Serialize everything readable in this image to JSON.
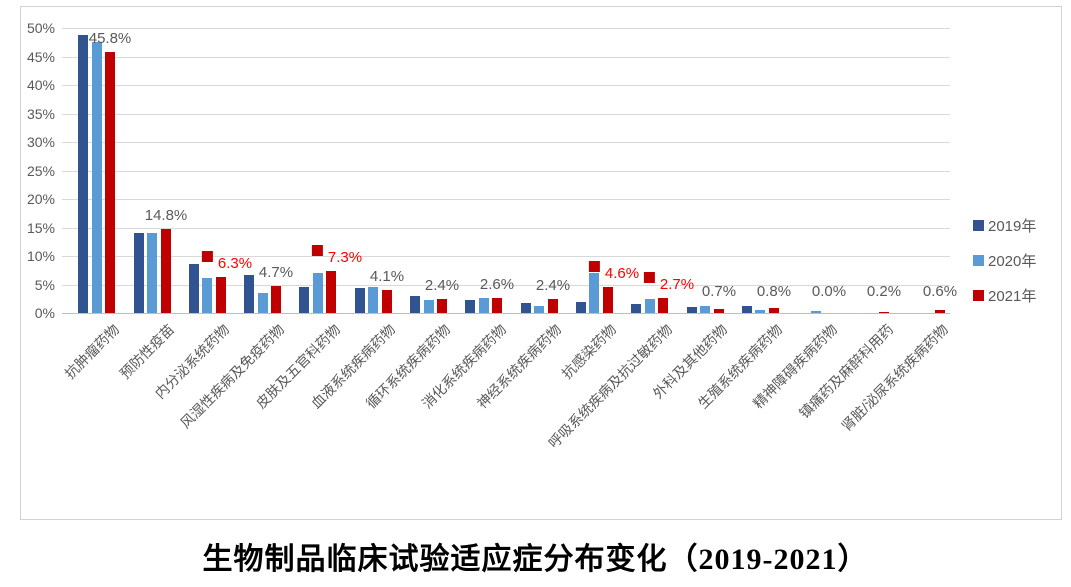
{
  "title": "生物制品临床试验适应症分布变化（2019-2021）",
  "colors": {
    "series_2019": "#31538F",
    "series_2020": "#5B9BD5",
    "series_2021": "#C00000",
    "highlight_label": "#FF0000",
    "gray_label": "#595959",
    "gridline": "#D9D9D9"
  },
  "chart_data": {
    "type": "bar",
    "title": "生物制品临床试验适应症分布变化（2019-2021）",
    "xlabel": "",
    "ylabel": "",
    "ylim": [
      0,
      50
    ],
    "ytick_step": 5,
    "ytick_labels": [
      "0%",
      "5%",
      "10%",
      "15%",
      "20%",
      "25%",
      "30%",
      "35%",
      "40%",
      "45%",
      "50%"
    ],
    "grid": true,
    "legend_position": "right",
    "categories": [
      "抗肿瘤药物",
      "预防性疫苗",
      "内分泌系统药物",
      "风湿性疾病及免疫药物",
      "皮肤及五官科药物",
      "血液系统疾病药物",
      "循环系统疾病药物",
      "消化系统疾病药物",
      "神经系统疾病药物",
      "抗感染药物",
      "呼吸系统疾病及抗过敏药物",
      "外科及其他药物",
      "生殖系统疾病药物",
      "精神障碍疾病药物",
      "镇痛药及麻醉科用药",
      "肾脏/泌尿系统疾病药物"
    ],
    "series": [
      {
        "name": "2019年",
        "color": "#31538F",
        "values": [
          48.8,
          14.0,
          8.6,
          6.7,
          4.5,
          4.3,
          3.0,
          2.2,
          1.8,
          1.9,
          1.5,
          1.0,
          1.2,
          0.0,
          0.0,
          0.0
        ]
      },
      {
        "name": "2020年",
        "color": "#5B9BD5",
        "values": [
          47.5,
          14.0,
          6.1,
          3.5,
          7.0,
          4.6,
          2.3,
          2.6,
          1.3,
          7.1,
          2.5,
          1.2,
          0.6,
          0.4,
          0.0,
          0.0
        ]
      },
      {
        "name": "2021年",
        "color": "#C00000",
        "values": [
          45.8,
          14.8,
          6.3,
          4.7,
          7.3,
          4.1,
          2.4,
          2.6,
          2.4,
          4.6,
          2.7,
          0.7,
          0.8,
          0.0,
          0.2,
          0.6
        ]
      }
    ],
    "data_labels_2021": [
      {
        "text": "45.8%",
        "highlight": false
      },
      {
        "text": "14.8%",
        "highlight": false
      },
      {
        "text": "6.3%",
        "highlight": true
      },
      {
        "text": "4.7%",
        "highlight": false
      },
      {
        "text": "7.3%",
        "highlight": true
      },
      {
        "text": "4.1%",
        "highlight": false
      },
      {
        "text": "2.4%",
        "highlight": false
      },
      {
        "text": "2.6%",
        "highlight": false
      },
      {
        "text": "2.4%",
        "highlight": false
      },
      {
        "text": "4.6%",
        "highlight": true
      },
      {
        "text": "2.7%",
        "highlight": true
      },
      {
        "text": "0.7%",
        "highlight": false
      },
      {
        "text": "0.8%",
        "highlight": false
      },
      {
        "text": "0.0%",
        "highlight": false
      },
      {
        "text": "0.2%",
        "highlight": false
      },
      {
        "text": "0.6%",
        "highlight": false
      }
    ]
  }
}
